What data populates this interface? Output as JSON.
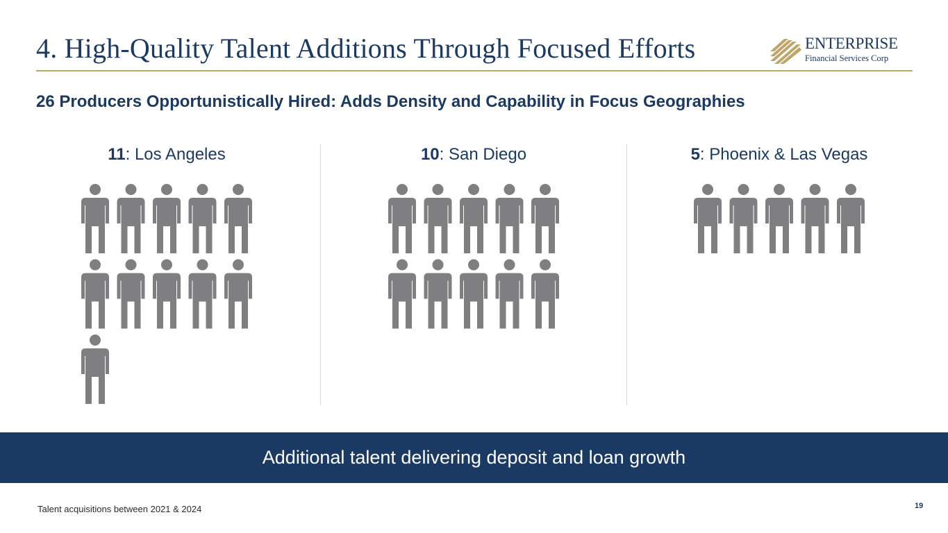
{
  "header": {
    "title": "4. High-Quality Talent Additions Through Focused Efforts",
    "logo_name": "ENTERPRISE",
    "logo_sub": "Financial Services Corp"
  },
  "subtitle": "26 Producers Opportunistically Hired: Adds Density and Capability in Focus Geographies",
  "groups": [
    {
      "count": "11",
      "label": ": Los Angeles",
      "people": 11
    },
    {
      "count": "10",
      "label": ": San Diego",
      "people": 10
    },
    {
      "count": "5",
      "label": ": Phoenix & Las Vegas",
      "people": 5
    }
  ],
  "banner": "Additional talent delivering deposit and loan growth",
  "footnote": "Talent acquisitions between 2021 & 2024",
  "page_number": "19",
  "colors": {
    "navy": "#1b3a63",
    "gold": "#bfa56a",
    "person_gray": "#7f7f82"
  },
  "icons": [
    "person-icon",
    "enterprise-logo-mark"
  ]
}
